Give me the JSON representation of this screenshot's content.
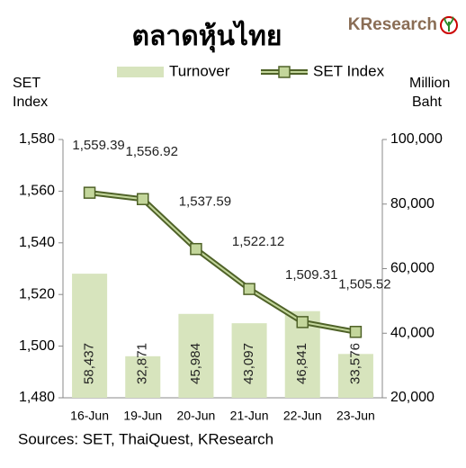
{
  "chart_data": {
    "type": "combo",
    "title": "ตลาดหุ้นไทย",
    "logo": "KResearch",
    "y_label": [
      "SET",
      "Index"
    ],
    "y2_label": [
      "Million",
      "Baht"
    ],
    "source": "Sources: SET, ThaiQuest, KResearch",
    "categories": [
      "16-Jun",
      "19-Jun",
      "20-Jun",
      "21-Jun",
      "22-Jun",
      "23-Jun"
    ],
    "series": [
      {
        "name": "Turnover",
        "type": "bar",
        "axis": "y2",
        "color": "#d7e4bd",
        "values": [
          58437,
          32871,
          45984,
          43097,
          46841,
          33576
        ],
        "value_labels": [
          "58,437",
          "32,871",
          "45,984",
          "43,097",
          "46,841",
          "33,576"
        ]
      },
      {
        "name": "SET Index",
        "type": "line",
        "color": "#4f6228",
        "marker_color": "#c3d69b",
        "values": [
          1559.39,
          1556.92,
          1537.59,
          1522.12,
          1509.31,
          1505.52
        ],
        "value_labels": [
          "1,559.39",
          "1,556.92",
          "1,537.59",
          "1,522.12",
          "1,509.31",
          "1,505.52"
        ]
      }
    ],
    "ylim": [
      1480,
      1580
    ],
    "yticks": [
      {
        "value": 1480,
        "label": "1,480"
      },
      {
        "value": 1500,
        "label": "1,500"
      },
      {
        "value": 1520,
        "label": "1,520"
      },
      {
        "value": 1540,
        "label": "1,540"
      },
      {
        "value": 1560,
        "label": "1,560"
      },
      {
        "value": 1580,
        "label": "1,580"
      }
    ],
    "y2lim": [
      20000,
      100000
    ],
    "y2ticks": [
      {
        "value": 20000,
        "label": "20,000"
      },
      {
        "value": 40000,
        "label": "40,000"
      },
      {
        "value": 60000,
        "label": "60,000"
      },
      {
        "value": 80000,
        "label": "80,000"
      },
      {
        "value": 100000,
        "label": "100,000"
      }
    ],
    "legend": "top",
    "grid": false
  }
}
